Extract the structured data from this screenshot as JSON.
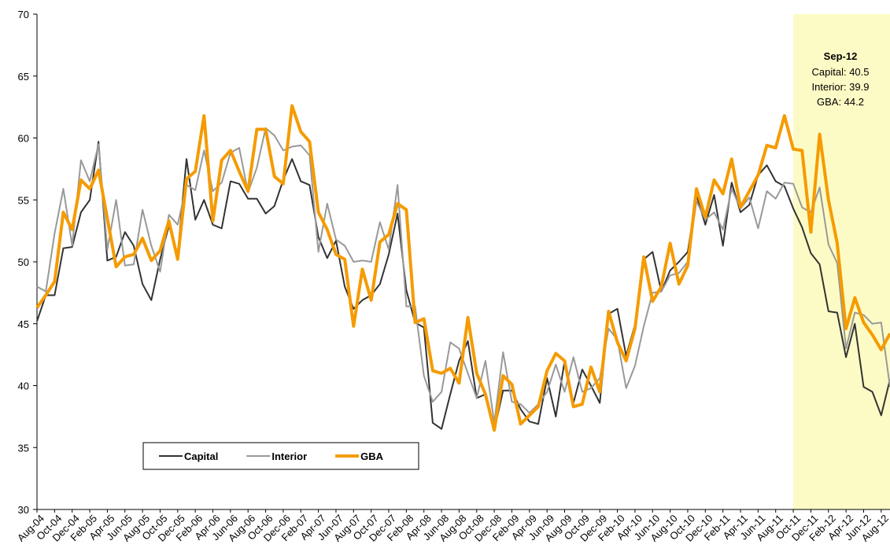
{
  "chart_data": {
    "type": "line",
    "categories": [
      "Aug-04",
      null,
      "Oct-04",
      null,
      "Dec-04",
      null,
      "Feb-05",
      null,
      "Apr-05",
      null,
      "Jun-05",
      null,
      "Aug-05",
      null,
      "Oct-05",
      null,
      "Dec-05",
      null,
      "Feb-06",
      null,
      "Apr-06",
      null,
      "Jun-06",
      null,
      "Aug-06",
      null,
      "Oct-06",
      null,
      "Dec-06",
      null,
      "Feb-07",
      null,
      "Apr-07",
      null,
      "Jun-07",
      null,
      "Aug-07",
      null,
      "Oct-07",
      null,
      "Dec-07",
      null,
      "Feb-08",
      null,
      "Apr-08",
      null,
      "Jun-08",
      null,
      "Aug-08",
      null,
      "Oct-08",
      null,
      "Dec-08",
      null,
      "Feb-09",
      null,
      "Apr-09",
      null,
      "Jun-09",
      null,
      "Aug-09",
      null,
      "Oct-09",
      null,
      "Dec-09",
      null,
      "Feb-10",
      null,
      "Apr-10",
      null,
      "Jun-10",
      null,
      "Aug-10",
      null,
      "Oct-10",
      null,
      "Dec-10",
      null,
      "Feb-11",
      null,
      "Apr-11",
      null,
      "Jun-11",
      null,
      "Aug-11",
      null,
      "Oct-11",
      null,
      "Dec-11",
      null,
      "Feb-12",
      null,
      "Apr-12",
      null,
      "Jun-12",
      null,
      "Aug-12",
      null
    ],
    "series": [
      {
        "name": "Capital",
        "color": "#333333",
        "width": 2,
        "values": [
          45.2,
          47.3,
          47.3,
          51.1,
          51.2,
          54.0,
          55.0,
          59.7,
          50.1,
          50.4,
          52.4,
          51.3,
          48.2,
          46.9,
          50.2,
          52.9,
          50.6,
          58.3,
          53.4,
          55.0,
          53.0,
          52.7,
          56.5,
          56.3,
          55.1,
          55.1,
          53.9,
          54.5,
          56.6,
          58.3,
          56.5,
          56.2,
          52.0,
          50.3,
          51.7,
          48.0,
          46.2,
          46.9,
          47.3,
          48.2,
          50.6,
          53.9,
          47.7,
          45.1,
          44.7,
          37.0,
          36.5,
          39.3,
          42.0,
          43.6,
          39.0,
          39.3,
          36.4,
          39.6,
          39.6,
          38.1,
          37.1,
          36.9,
          40.6,
          37.5,
          42.0,
          38.6,
          41.3,
          40.0,
          38.6,
          45.8,
          46.2,
          42.4,
          44.9,
          50.2,
          50.8,
          47.6,
          49.3,
          50.0,
          50.8,
          55.4,
          53.0,
          55.4,
          51.3,
          56.4,
          54.0,
          54.6,
          57.0,
          57.8,
          56.5,
          56.1,
          54.3,
          52.8,
          50.7,
          49.8,
          46.0,
          45.9,
          42.3,
          45.0,
          39.9,
          39.5,
          37.6,
          40.5
        ]
      },
      {
        "name": "Interior",
        "color": "#999999",
        "width": 2,
        "values": [
          48.0,
          47.6,
          52.3,
          55.9,
          51.3,
          58.2,
          56.5,
          59.5,
          51.0,
          55.0,
          49.7,
          49.8,
          54.2,
          51.3,
          49.2,
          53.8,
          53.0,
          56.2,
          55.8,
          59.0,
          55.7,
          56.4,
          58.8,
          59.2,
          55.6,
          57.6,
          60.8,
          60.2,
          59.0,
          59.3,
          59.4,
          58.6,
          50.8,
          54.7,
          51.8,
          51.3,
          50.0,
          50.1,
          50.0,
          53.2,
          51.0,
          56.2,
          46.4,
          46.4,
          40.8,
          38.7,
          39.5,
          43.5,
          43.0,
          41.0,
          39.0,
          42.0,
          37.0,
          42.7,
          38.7,
          38.5,
          37.8,
          38.5,
          39.5,
          41.7,
          39.5,
          42.3,
          39.5,
          39.8,
          40.6,
          44.6,
          43.7,
          39.8,
          41.6,
          44.8,
          47.5,
          47.6,
          48.9,
          49.1,
          50.0,
          54.9,
          53.4,
          54.0,
          52.6,
          55.9,
          54.3,
          55.2,
          52.7,
          55.7,
          55.1,
          56.4,
          56.3,
          54.4,
          54.0,
          56.0,
          51.4,
          49.9,
          43.0,
          45.9,
          45.7,
          45.0,
          45.1,
          39.9
        ]
      },
      {
        "name": "GBA",
        "color": "#f59b00",
        "width": 4,
        "values": [
          46.3,
          47.3,
          48.4,
          54.0,
          52.6,
          56.6,
          55.9,
          57.4,
          53.5,
          49.6,
          50.4,
          50.6,
          51.9,
          50.1,
          50.9,
          53.3,
          50.2,
          56.7,
          57.3,
          61.8,
          53.3,
          58.2,
          59.0,
          57.3,
          55.7,
          60.7,
          60.7,
          56.9,
          56.3,
          62.6,
          60.5,
          59.7,
          54.0,
          52.6,
          50.6,
          50.2,
          44.8,
          49.4,
          46.9,
          51.6,
          52.2,
          54.7,
          54.2,
          45.1,
          45.4,
          41.2,
          41.0,
          41.4,
          40.2,
          45.5,
          41.0,
          39.3,
          36.4,
          40.8,
          40.1,
          36.9,
          37.6,
          38.3,
          41.2,
          42.6,
          42.0,
          38.3,
          38.5,
          41.5,
          39.5,
          46.0,
          43.5,
          42.0,
          44.6,
          50.4,
          46.8,
          48.0,
          51.5,
          48.2,
          49.7,
          55.9,
          53.6,
          56.6,
          55.5,
          58.3,
          54.4,
          55.7,
          57.0,
          59.4,
          59.2,
          61.8,
          59.1,
          59.0,
          52.4,
          60.3,
          55.0,
          51.5,
          44.6,
          47.1,
          45.1,
          44.1,
          42.9,
          44.2
        ]
      }
    ],
    "ylim": [
      30,
      70
    ],
    "yticks": [
      30,
      35,
      40,
      45,
      50,
      55,
      60,
      65,
      70
    ],
    "grid": false,
    "legend": "lower-left",
    "annotation": {
      "title": "Sep-12",
      "lines": [
        "Capital: 40.5",
        "Interior: 39.9",
        "GBA: 44.2"
      ]
    }
  }
}
